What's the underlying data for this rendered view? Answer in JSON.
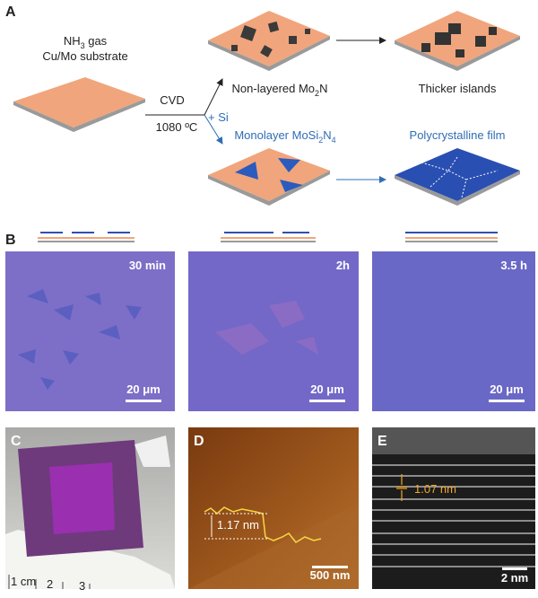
{
  "panel_a": {
    "label": "A",
    "start": {
      "line1": {
        "main": "NH",
        "sub": "3",
        "rest": " gas"
      },
      "line2": "Cu/Mo substrate"
    },
    "condition": {
      "top": "CVD",
      "bottom": "1080 ºC",
      "branch": "+ Si"
    },
    "upper": {
      "product": {
        "main": "Non-layered Mo",
        "sub": "2",
        "rest": "N"
      },
      "result": "Thicker islands"
    },
    "lower": {
      "product": {
        "main": "Monolayer MoSi",
        "sub": "2",
        "mid": "N",
        "sub2": "4"
      },
      "result": "Polycrystalline film"
    }
  },
  "panel_b": {
    "label": "B",
    "images": [
      {
        "time": "30 min",
        "scale": "20 μm"
      },
      {
        "time": "2h",
        "scale": "20 μm"
      },
      {
        "time": "3.5 h",
        "scale": "20 μm"
      }
    ]
  },
  "panel_c": {
    "label": "C",
    "ruler": [
      "1 cm",
      "2",
      "3"
    ]
  },
  "panel_d": {
    "label": "D",
    "height": "1.17 nm",
    "scale": "500 nm"
  },
  "panel_e": {
    "label": "E",
    "spacing": "1.07 nm",
    "scale": "2 nm"
  }
}
